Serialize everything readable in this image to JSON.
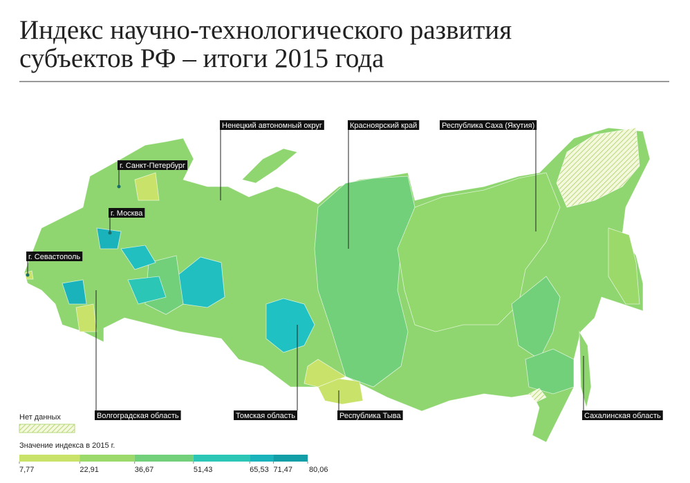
{
  "title": [
    "Индекс научно-технологического развития",
    "субъектов РФ – итоги 2015 года"
  ],
  "callouts": [
    {
      "label": "Ненецкий автономный округ"
    },
    {
      "label": "Красноярский край"
    },
    {
      "label": "Республика Саха (Якутия)"
    },
    {
      "label": "г. Санкт-Петербург"
    },
    {
      "label": "г. Москва"
    },
    {
      "label": "г. Севастополь"
    },
    {
      "label": "Волгоградская область"
    },
    {
      "label": "Томская область"
    },
    {
      "label": "Республика Тыва"
    },
    {
      "label": "Сахалинская область"
    }
  ],
  "legend": {
    "no_data": "Нет данных",
    "scale_title": "Значение индекса в 2015 г.",
    "breaks": [
      {
        "value": 7.77,
        "label": "7,77"
      },
      {
        "value": 22.91,
        "label": "22,91"
      },
      {
        "value": 36.67,
        "label": "36,67"
      },
      {
        "value": 51.43,
        "label": "51,43"
      },
      {
        "value": 65.53,
        "label": "65,53"
      },
      {
        "value": 71.47,
        "label": "71,47"
      },
      {
        "value": 80.06,
        "label": "80,06"
      }
    ],
    "colors": [
      "#c8e26a",
      "#9bd96a",
      "#72d07a",
      "#2cc6b6",
      "#1bb3bb",
      "#129ea7"
    ]
  }
}
